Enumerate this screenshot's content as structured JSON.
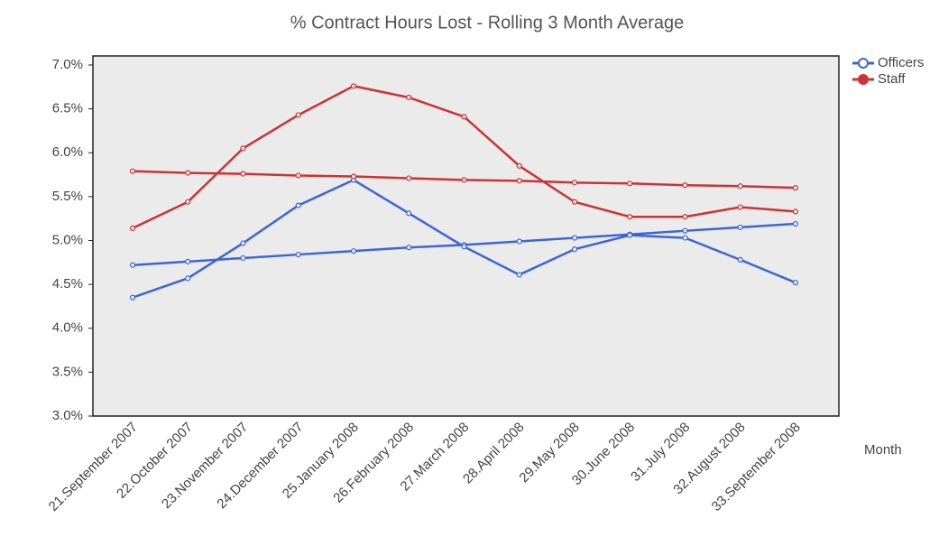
{
  "chart_data": {
    "type": "line",
    "title": "% Contract Hours Lost - Rolling 3 Month Average",
    "x_label": "Month",
    "categories": [
      "21.September 2007",
      "22.October 2007",
      "23.November 2007",
      "24.December 2007",
      "25.January 2008",
      "26.February 2008",
      "27.March 2008",
      "28.April 2008",
      "29.May 2008",
      "30.June 2008",
      "31.July 2008",
      "32.August 2008",
      "33.September 2008"
    ],
    "series": [
      {
        "name": "Officers",
        "color": "#3b66d6",
        "values": [
          4.35,
          4.57,
          4.97,
          5.4,
          5.69,
          5.31,
          4.93,
          4.61,
          4.9,
          5.06,
          5.03,
          4.78,
          4.52
        ],
        "trend_values": [
          4.72,
          4.76,
          4.8,
          4.84,
          4.88,
          4.92,
          4.95,
          4.99,
          5.03,
          5.07,
          5.11,
          5.15,
          5.19
        ]
      },
      {
        "name": "Staff",
        "color": "#cc3333",
        "values": [
          5.14,
          5.44,
          6.05,
          6.43,
          6.76,
          6.63,
          6.41,
          5.85,
          5.44,
          5.27,
          5.27,
          5.38,
          5.33
        ],
        "trend_values": [
          5.79,
          5.77,
          5.76,
          5.74,
          5.73,
          5.71,
          5.69,
          5.68,
          5.66,
          5.65,
          5.63,
          5.62,
          5.6
        ]
      }
    ],
    "ylim": [
      3,
      7
    ],
    "yticks": [
      {
        "value": 3,
        "label": "3.0%"
      },
      {
        "value": 3.5,
        "label": "3.5%"
      },
      {
        "value": 4,
        "label": "4.0%"
      },
      {
        "value": 4.5,
        "label": "4.5%"
      },
      {
        "value": 5,
        "label": "5.0%"
      },
      {
        "value": 5.5,
        "label": "5.5%"
      },
      {
        "value": 6,
        "label": "6.0%"
      },
      {
        "value": 6.5,
        "label": "6.5%"
      },
      {
        "value": 7,
        "label": "7.0%"
      }
    ],
    "grid": false,
    "legend": "top-right"
  }
}
